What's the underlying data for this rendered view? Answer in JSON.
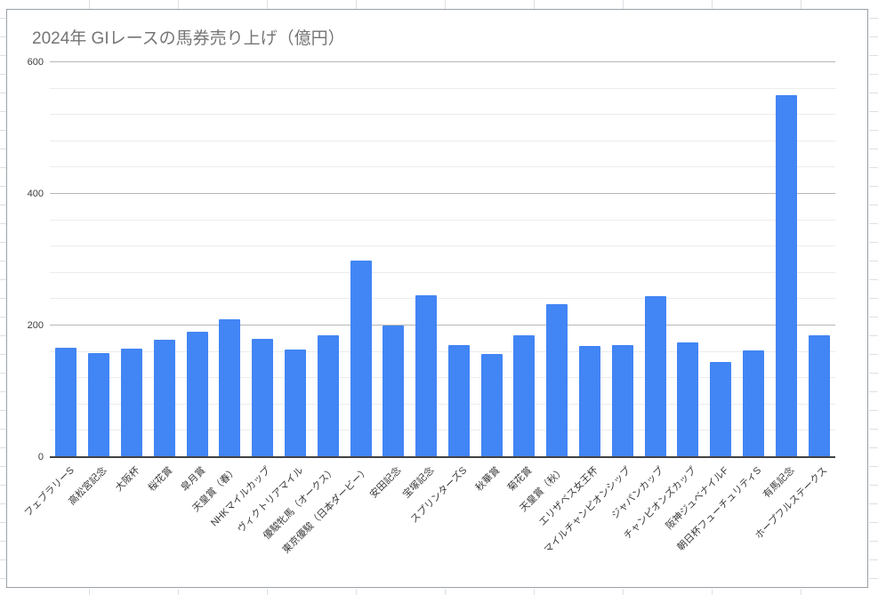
{
  "chart_data": {
    "type": "bar",
    "title": "2024年 GIレースの馬券売り上げ（億円）",
    "title_color": "#757575",
    "bar_color": "#4285f4",
    "categories": [
      "フェブラリーS",
      "高松宮記念",
      "大阪杯",
      "桜花賞",
      "皐月賞",
      "天皇賞（春）",
      "NHKマイルカップ",
      "ヴィクトリアマイル",
      "優駿牝馬（オークス）",
      "東京優駿（日本ダービー）",
      "安田記念",
      "宝塚記念",
      "スプリンターズS",
      "秋華賞",
      "菊花賞",
      "天皇賞（秋）",
      "エリザベス女王杯",
      "マイルチャンピオンシップ",
      "ジャパンカップ",
      "チャンピオンズカップ",
      "阪神ジュベナイルF",
      "朝日杯フューチュリティS",
      "有馬記念",
      "ホープフルステークス"
    ],
    "values": [
      166,
      158,
      165,
      179,
      190,
      210,
      180,
      164,
      185,
      298,
      200,
      246,
      170,
      157,
      185,
      233,
      169,
      170,
      244,
      175,
      144,
      162,
      550,
      185
    ],
    "xlabel": "",
    "ylabel": "",
    "ylim": [
      0,
      600
    ],
    "yticks": [
      "0",
      "200",
      "400",
      "600"
    ],
    "minor_gridline_step": 40,
    "major_gridline_step": 200,
    "grid": true,
    "legend_position": "none"
  }
}
